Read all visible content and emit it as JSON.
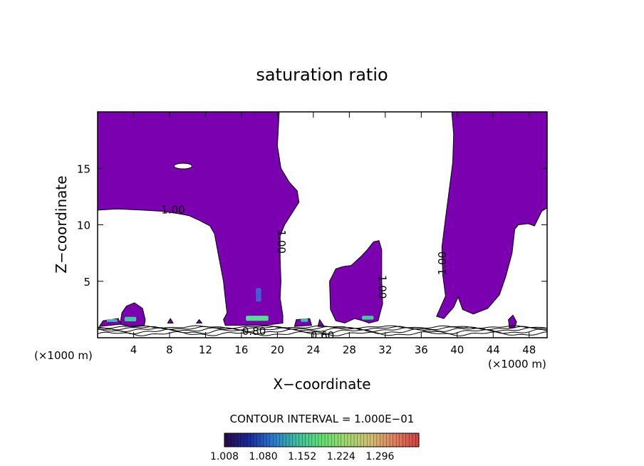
{
  "chart_data": {
    "type": "heatmap",
    "title": "saturation ratio",
    "xlabel": "X−coordinate",
    "ylabel": "Z−coordinate",
    "x_unit_left": "(×1000 m)",
    "x_unit_right": "(×1000 m)",
    "xlim": [
      0,
      50
    ],
    "ylim": [
      0,
      20
    ],
    "x_ticks": [
      4,
      8,
      12,
      16,
      20,
      24,
      28,
      32,
      36,
      40,
      44,
      48
    ],
    "y_ticks": [
      5,
      10,
      15
    ],
    "contour_interval_text": "CONTOUR INTERVAL = 1.000E−01",
    "contour_labels": [
      {
        "text": "1.00",
        "x": 8.4,
        "y": 11.3,
        "angle": 0
      },
      {
        "text": "1.00",
        "x": 20.4,
        "y": 8.5,
        "angle": 90
      },
      {
        "text": "1.00",
        "x": 31.6,
        "y": 4.5,
        "angle": 90
      },
      {
        "text": "1.00",
        "x": 38.4,
        "y": 6.6,
        "angle": -90
      },
      {
        "text": "0.80",
        "x": 17.4,
        "y": 0.55,
        "angle": 0
      },
      {
        "text": "0.60",
        "x": 25.0,
        "y": 0.15,
        "angle": 0
      }
    ],
    "colorbar": {
      "tick_labels": [
        "1.008",
        "1.080",
        "1.152",
        "1.224",
        "1.296"
      ],
      "min": 1.008,
      "max": 1.368,
      "stops": [
        "#2a0a4a",
        "#1a2a9a",
        "#2a7ad0",
        "#40c0a0",
        "#60e070",
        "#a0d870",
        "#d0c070",
        "#e08060",
        "#d04040"
      ]
    },
    "fill_color": "#7a00b0",
    "regions": [
      {
        "name": "upper-left-cloud",
        "points": [
          [
            0,
            20
          ],
          [
            20.2,
            20
          ],
          [
            20,
            17
          ],
          [
            20.4,
            15
          ],
          [
            21.3,
            13.8
          ],
          [
            22.2,
            13
          ],
          [
            22.4,
            12
          ],
          [
            21.6,
            11
          ],
          [
            20.8,
            10
          ],
          [
            20.3,
            9
          ],
          [
            20.3,
            7
          ],
          [
            20.4,
            5
          ],
          [
            20.3,
            3.5
          ],
          [
            20.6,
            2
          ],
          [
            20.6,
            1.3
          ],
          [
            18.5,
            1.1
          ],
          [
            16.5,
            1.1
          ],
          [
            14.2,
            1.1
          ],
          [
            14,
            1.6
          ],
          [
            14.4,
            2.2
          ],
          [
            14.2,
            3.5
          ],
          [
            14,
            5
          ],
          [
            13.4,
            7.5
          ],
          [
            13,
            9.2
          ],
          [
            12.5,
            9.9
          ],
          [
            11.3,
            10.4
          ],
          [
            10.2,
            10.8
          ],
          [
            8.9,
            11
          ],
          [
            7.2,
            11.2
          ],
          [
            5,
            11.3
          ],
          [
            2.2,
            11.4
          ],
          [
            0,
            11.3
          ]
        ]
      },
      {
        "name": "right-column-cloud",
        "points": [
          [
            39.4,
            20
          ],
          [
            50,
            20
          ],
          [
            50,
            11.5
          ],
          [
            49.4,
            11.2
          ],
          [
            48.6,
            9.9
          ],
          [
            47.9,
            10.1
          ],
          [
            46.8,
            10
          ],
          [
            46.4,
            9.6
          ],
          [
            46.1,
            7.5
          ],
          [
            45.4,
            5.4
          ],
          [
            44.7,
            3.8
          ],
          [
            43.4,
            2.6
          ],
          [
            41.8,
            2.1
          ],
          [
            40.6,
            2.5
          ],
          [
            40.1,
            3.6
          ],
          [
            39.6,
            2.7
          ],
          [
            38.5,
            1.7
          ],
          [
            37.7,
            1.9
          ],
          [
            38.7,
            3.7
          ],
          [
            38.4,
            5.5
          ],
          [
            38.3,
            8
          ],
          [
            38.7,
            10.6
          ],
          [
            39.1,
            13
          ],
          [
            39.5,
            15.5
          ],
          [
            39.6,
            18
          ]
        ]
      },
      {
        "name": "center-right-cloud",
        "points": [
          [
            25.8,
            5
          ],
          [
            26.5,
            6.1
          ],
          [
            27.3,
            6.3
          ],
          [
            28.2,
            6.4
          ],
          [
            29.3,
            7.2
          ],
          [
            29.9,
            7.7
          ],
          [
            30.7,
            8.5
          ],
          [
            31.3,
            8.6
          ],
          [
            31.6,
            7.8
          ],
          [
            31.6,
            5
          ],
          [
            31.7,
            3
          ],
          [
            31.2,
            1.5
          ],
          [
            30.2,
            1.3
          ],
          [
            29.5,
            1.5
          ],
          [
            28.6,
            1.7
          ],
          [
            27.5,
            1.3
          ],
          [
            26.5,
            1.5
          ],
          [
            25.9,
            2.5
          ]
        ]
      },
      {
        "name": "left-small-bump",
        "points": [
          [
            2.5,
            1.2
          ],
          [
            2.7,
            2.2
          ],
          [
            3.2,
            2.8
          ],
          [
            4.1,
            3.1
          ],
          [
            5,
            2.6
          ],
          [
            5.3,
            1.6
          ],
          [
            5.2,
            1.1
          ],
          [
            3.6,
            1.0
          ]
        ]
      },
      {
        "name": "bottom-left-strip",
        "points": [
          [
            0.2,
            1.0
          ],
          [
            0.6,
            1.5
          ],
          [
            2.3,
            1.7
          ],
          [
            2.6,
            1.2
          ]
        ]
      },
      {
        "name": "right-small-blob",
        "points": [
          [
            45.8,
            0.9
          ],
          [
            45.7,
            1.6
          ],
          [
            46.2,
            2.0
          ],
          [
            46.6,
            1.4
          ],
          [
            46.4,
            0.9
          ]
        ]
      },
      {
        "name": "mid-small-blob",
        "points": [
          [
            21.9,
            1.0
          ],
          [
            22.1,
            1.6
          ],
          [
            23.6,
            1.7
          ],
          [
            23.8,
            1.1
          ]
        ]
      },
      {
        "name": "tiny-blob-a",
        "points": [
          [
            7.8,
            1.3
          ],
          [
            8.1,
            1.7
          ],
          [
            8.4,
            1.3
          ]
        ]
      },
      {
        "name": "tiny-blob-b",
        "points": [
          [
            24.5,
            1.0
          ],
          [
            24.7,
            1.6
          ],
          [
            25.2,
            1.0
          ]
        ]
      },
      {
        "name": "tiny-blob-c",
        "points": [
          [
            11.0,
            1.3
          ],
          [
            11.3,
            1.6
          ],
          [
            11.6,
            1.3
          ]
        ]
      }
    ],
    "holes": [
      {
        "name": "cloud-hole",
        "cx": 9.5,
        "cy": 15.2,
        "rx": 1.0,
        "ry": 0.25
      }
    ],
    "high_value_patches": [
      {
        "x": 3.0,
        "y": 1.45,
        "w": 1.3,
        "h": 0.4,
        "color": "#40c8a0"
      },
      {
        "x": 16.5,
        "y": 1.5,
        "w": 2.5,
        "h": 0.45,
        "color": "#50e090"
      },
      {
        "x": 29.4,
        "y": 1.6,
        "w": 1.3,
        "h": 0.35,
        "color": "#40c8a0"
      },
      {
        "x": 22.6,
        "y": 1.4,
        "w": 0.8,
        "h": 0.3,
        "color": "#40b8c0"
      },
      {
        "x": 17.6,
        "y": 3.2,
        "w": 0.6,
        "h": 1.2,
        "color": "#4060d0"
      },
      {
        "x": 1.0,
        "y": 1.4,
        "w": 1.2,
        "h": 0.25,
        "color": "#40b8c0"
      }
    ],
    "ground_contours": [
      {
        "y": 0.35,
        "amp": 0.12
      },
      {
        "y": 0.55,
        "amp": 0.14
      },
      {
        "y": 0.72,
        "amp": 0.12
      },
      {
        "y": 0.85,
        "amp": 0.1
      },
      {
        "y": 0.95,
        "amp": 0.08
      }
    ]
  }
}
